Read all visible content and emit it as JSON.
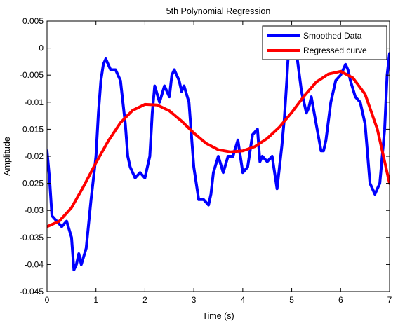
{
  "chart_data": {
    "type": "line",
    "title": "5th Polynomial Regression",
    "xlabel": "Time (s)",
    "ylabel": "Amplitude",
    "xlim": [
      0,
      7
    ],
    "ylim": [
      -0.045,
      0.005
    ],
    "xticks": [
      0,
      1,
      2,
      3,
      4,
      5,
      6,
      7
    ],
    "xtick_labels": [
      "0",
      "1",
      "2",
      "3",
      "4",
      "5",
      "6",
      "7"
    ],
    "yticks": [
      0.005,
      0,
      -0.005,
      -0.01,
      -0.015,
      -0.02,
      -0.025,
      -0.03,
      -0.035,
      -0.04,
      -0.045
    ],
    "ytick_labels": [
      "0.005",
      "0",
      "-0.005",
      "-0.01",
      "-0.015",
      "-0.02",
      "-0.025",
      "-0.03",
      "-0.035",
      "-0.04",
      "-0.045"
    ],
    "grid": false,
    "legend_position": "top-right",
    "series": [
      {
        "name": "Smoothed Data",
        "color": "#0000ff",
        "x": [
          0,
          0.05,
          0.1,
          0.2,
          0.3,
          0.4,
          0.5,
          0.55,
          0.6,
          0.65,
          0.7,
          0.8,
          0.9,
          1.0,
          1.05,
          1.1,
          1.15,
          1.2,
          1.25,
          1.3,
          1.4,
          1.5,
          1.6,
          1.65,
          1.7,
          1.8,
          1.9,
          2.0,
          2.1,
          2.15,
          2.2,
          2.3,
          2.4,
          2.5,
          2.55,
          2.6,
          2.65,
          2.7,
          2.75,
          2.8,
          2.9,
          3.0,
          3.1,
          3.2,
          3.3,
          3.35,
          3.4,
          3.5,
          3.6,
          3.7,
          3.8,
          3.9,
          4.0,
          4.1,
          4.2,
          4.3,
          4.35,
          4.4,
          4.5,
          4.6,
          4.7,
          4.8,
          4.85,
          4.9,
          4.95,
          5.0,
          5.1,
          5.2,
          5.3,
          5.35,
          5.4,
          5.5,
          5.6,
          5.65,
          5.7,
          5.8,
          5.9,
          6.0,
          6.1,
          6.15,
          6.2,
          6.3,
          6.4,
          6.5,
          6.6,
          6.7,
          6.8,
          6.9,
          6.95,
          7.0
        ],
        "y": [
          -0.019,
          -0.024,
          -0.031,
          -0.032,
          -0.033,
          -0.032,
          -0.035,
          -0.041,
          -0.04,
          -0.038,
          -0.04,
          -0.037,
          -0.028,
          -0.02,
          -0.012,
          -0.006,
          -0.003,
          -0.002,
          -0.003,
          -0.004,
          -0.004,
          -0.006,
          -0.014,
          -0.02,
          -0.022,
          -0.024,
          -0.023,
          -0.024,
          -0.02,
          -0.012,
          -0.007,
          -0.01,
          -0.007,
          -0.009,
          -0.005,
          -0.004,
          -0.005,
          -0.006,
          -0.008,
          -0.007,
          -0.01,
          -0.022,
          -0.028,
          -0.028,
          -0.029,
          -0.027,
          -0.023,
          -0.02,
          -0.023,
          -0.02,
          -0.02,
          -0.017,
          -0.023,
          -0.022,
          -0.016,
          -0.015,
          -0.021,
          -0.02,
          -0.021,
          -0.02,
          -0.026,
          -0.018,
          -0.013,
          -0.006,
          0.002,
          0.001,
          -0.001,
          -0.008,
          -0.012,
          -0.011,
          -0.009,
          -0.014,
          -0.019,
          -0.019,
          -0.017,
          -0.01,
          -0.006,
          -0.005,
          -0.003,
          -0.004,
          -0.006,
          -0.009,
          -0.01,
          -0.014,
          -0.025,
          -0.027,
          -0.025,
          -0.015,
          -0.005,
          -0.001
        ]
      },
      {
        "name": "Regressed curve",
        "color": "#ff0000",
        "x": [
          0,
          0.25,
          0.5,
          0.75,
          1.0,
          1.25,
          1.5,
          1.75,
          2.0,
          2.25,
          2.5,
          2.75,
          3.0,
          3.25,
          3.5,
          3.75,
          4.0,
          4.25,
          4.5,
          4.75,
          5.0,
          5.25,
          5.5,
          5.75,
          6.0,
          6.25,
          6.5,
          6.75,
          7.0
        ],
        "y": [
          -0.033,
          -0.032,
          -0.0295,
          -0.0255,
          -0.0212,
          -0.0172,
          -0.0138,
          -0.0115,
          -0.0104,
          -0.0105,
          -0.0116,
          -0.0135,
          -0.0157,
          -0.0176,
          -0.0188,
          -0.0192,
          -0.019,
          -0.0182,
          -0.0167,
          -0.0146,
          -0.0119,
          -0.0089,
          -0.0063,
          -0.0048,
          -0.0043,
          -0.0055,
          -0.0085,
          -0.015,
          -0.025
        ]
      }
    ]
  }
}
